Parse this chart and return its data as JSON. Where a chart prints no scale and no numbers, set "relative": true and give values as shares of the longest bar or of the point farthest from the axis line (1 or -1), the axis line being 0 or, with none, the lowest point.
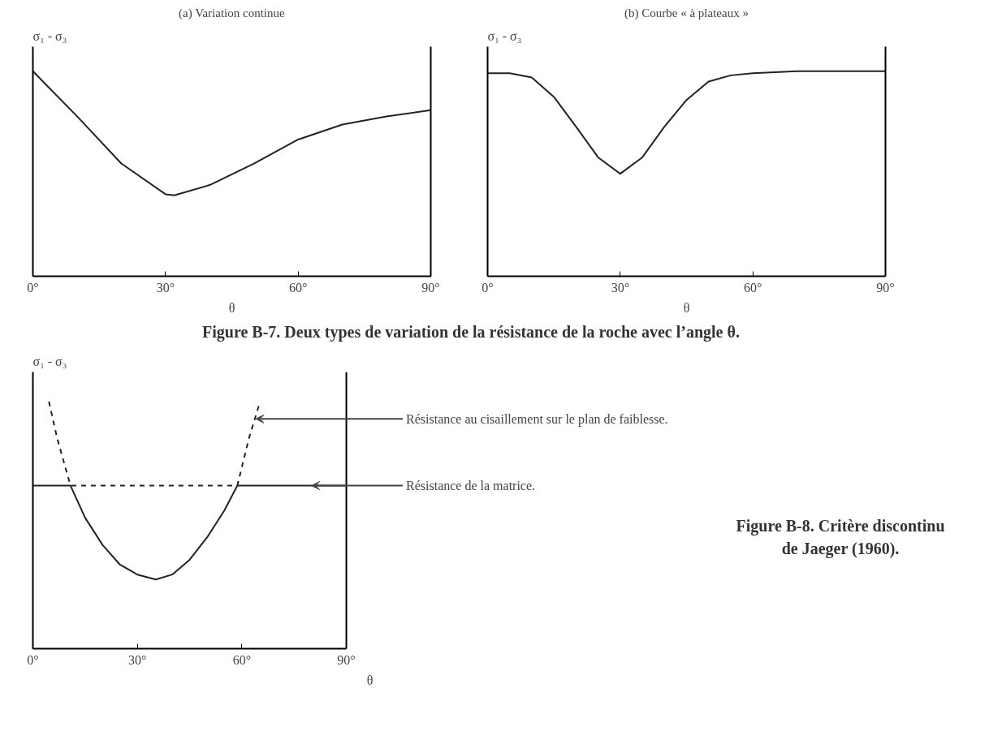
{
  "chart_data": [
    {
      "type": "line",
      "title": "(a) Variation continue",
      "xlabel": "θ",
      "ylabel": "σ₁ - σ₃",
      "relative": true,
      "xlim": [
        0,
        90
      ],
      "xticks": [
        {
          "value": 0,
          "label": "0°"
        },
        {
          "value": 30,
          "label": "30°"
        },
        {
          "value": 60,
          "label": "60°"
        },
        {
          "value": 90,
          "label": "90°"
        }
      ],
      "annotations": [
        "Figure B-7. Deux types de variation de la résistance de la roche avec l’angle θ."
      ],
      "series": [
        {
          "color": "#222222",
          "line_style": "solid",
          "x": [
            0,
            10,
            20,
            30,
            32,
            40,
            50,
            60,
            70,
            80,
            90
          ],
          "values": [
            1.0,
            0.78,
            0.55,
            0.4,
            0.395,
            0.445,
            0.55,
            0.667,
            0.74,
            0.78,
            0.81
          ]
        }
      ]
    },
    {
      "type": "line",
      "title": "(b) Courbe « à plateaux »",
      "xlabel": "θ",
      "ylabel": "σ₁ - σ₃",
      "relative": true,
      "xlim": [
        0,
        90
      ],
      "xticks": [
        {
          "value": 0,
          "label": "0°"
        },
        {
          "value": 30,
          "label": "30°"
        },
        {
          "value": 60,
          "label": "60°"
        },
        {
          "value": 90,
          "label": "90°"
        }
      ],
      "series": [
        {
          "color": "#222222",
          "line_style": "solid",
          "x": [
            0,
            5,
            10,
            15,
            20,
            25,
            30,
            35,
            40,
            45,
            50,
            55,
            60,
            70,
            90
          ],
          "values": [
            0.99,
            0.99,
            0.97,
            0.875,
            0.73,
            0.58,
            0.5,
            0.58,
            0.73,
            0.86,
            0.95,
            0.98,
            0.99,
            1.0,
            1.0
          ]
        }
      ]
    },
    {
      "type": "line",
      "xlabel": "θ",
      "ylabel": "σ₁ - σ₃",
      "relative": true,
      "xlim": [
        0,
        90
      ],
      "xticks": [
        {
          "value": 0,
          "label": "0°"
        },
        {
          "value": 30,
          "label": "30°"
        },
        {
          "value": 60,
          "label": "60°"
        },
        {
          "value": 90,
          "label": "90°"
        }
      ],
      "annotations": [
        {
          "text": "Résistance au cisaillement sur le plan de faiblesse.",
          "x": 64,
          "y": 0.93
        },
        {
          "text": "Résistance de la matrice.",
          "x": 80,
          "y": 0.66
        },
        "Figure B-8. Critère discontinu de Jaeger (1960)."
      ],
      "series": [
        {
          "color": "#222222",
          "line_style": "solid",
          "x": [
            0,
            10.8,
            15,
            20,
            25,
            30,
            35.3,
            40,
            45,
            50,
            55,
            58.7,
            90
          ],
          "values": [
            0.66,
            0.66,
            0.53,
            0.42,
            0.34,
            0.3,
            0.28,
            0.3,
            0.36,
            0.45,
            0.56,
            0.66,
            0.66
          ]
        },
        {
          "color": "#222222",
          "line_style": "dashed",
          "x": [
            4.6,
            7,
            10.8,
            58.7,
            62,
            65
          ],
          "values": [
            1.0,
            0.85,
            0.66,
            0.66,
            0.85,
            0.99
          ]
        }
      ]
    }
  ]
}
